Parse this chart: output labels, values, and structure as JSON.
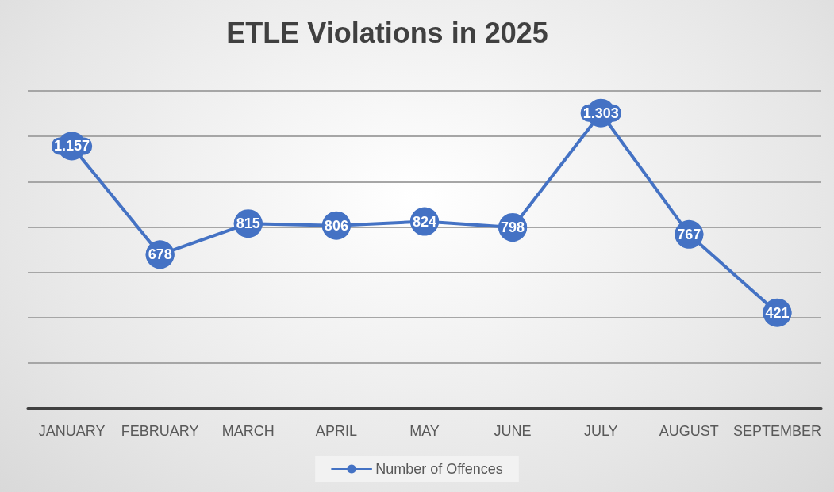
{
  "chart_data": {
    "type": "line",
    "title": "ETLE Violations in 2025",
    "categories": [
      "JANUARY",
      "FEBRUARY",
      "MARCH",
      "APRIL",
      "MAY",
      "JUNE",
      "JULY",
      "AUGUST",
      "SEPTEMBER"
    ],
    "series": [
      {
        "name": "Number of Offences",
        "color": "#4472c4",
        "values": [
          1157,
          678,
          815,
          806,
          824,
          798,
          1303,
          767,
          421
        ],
        "value_labels": [
          "1.157",
          "678",
          "815",
          "806",
          "824",
          "798",
          "1.303",
          "767",
          "421"
        ]
      }
    ],
    "ylim": [
      0,
      1400
    ],
    "yticks": [
      {
        "value": 0,
        "label": null
      },
      {
        "value": 200,
        "label": null
      },
      {
        "value": 400,
        "label": null
      },
      {
        "value": 600,
        "label": null
      },
      {
        "value": 800,
        "label": null
      },
      {
        "value": 1000,
        "label": null
      },
      {
        "value": 1200,
        "label": null
      },
      {
        "value": 1400,
        "label": null
      }
    ],
    "grid": "y",
    "legend": "bottom",
    "marker": "circle",
    "line_style": "solid",
    "tick_labels": "x"
  }
}
